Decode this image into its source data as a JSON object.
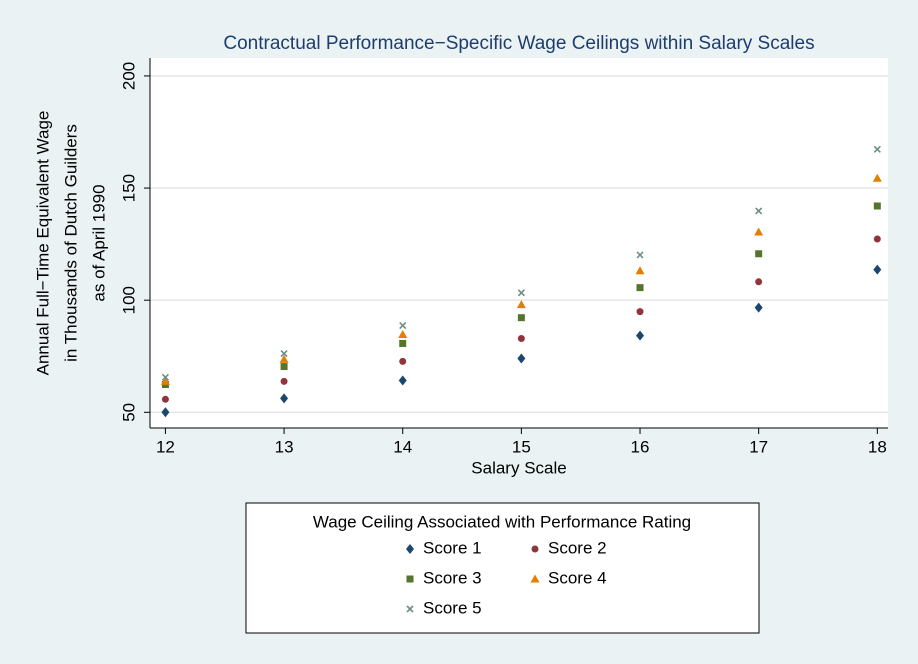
{
  "chart_data": {
    "type": "scatter",
    "title": "Contractual Performance−Specific Wage Ceilings within Salary Scales",
    "xlabel": "Salary Scale",
    "ylabel": [
      "Annual Full−Time Equivalent Wage",
      "in Thousands of Dutch Guilders",
      "as of April 1990"
    ],
    "x": [
      12,
      13,
      14,
      15,
      16,
      17,
      18
    ],
    "series": [
      {
        "name": "Score 1",
        "color": "#1a476f",
        "marker": "diamond",
        "values": [
          50,
          56.2,
          64.2,
          74,
          84.2,
          96.7,
          113.6
        ]
      },
      {
        "name": "Score 2",
        "color": "#90353b",
        "marker": "circle",
        "values": [
          55.8,
          63.8,
          72.7,
          82.9,
          94.9,
          108.2,
          127.3
        ]
      },
      {
        "name": "Score 3",
        "color": "#55752f",
        "marker": "square",
        "values": [
          62.4,
          70.4,
          80.7,
          92.2,
          105.6,
          120.7,
          142
        ]
      },
      {
        "name": "Score 4",
        "color": "#e37e00",
        "marker": "triangle",
        "values": [
          63.8,
          73.6,
          84.7,
          98,
          113.1,
          130.4,
          154.4
        ]
      },
      {
        "name": "Score 5",
        "color": "#6e8e84",
        "marker": "x",
        "values": [
          65.6,
          76.2,
          88.7,
          103.3,
          120.2,
          139.8,
          167.3
        ]
      }
    ],
    "legend_title": "Wage Ceiling Associated with Performance Rating",
    "legend_position": "bottom",
    "xlim": [
      11.87,
      18.09
    ],
    "xticks": [
      12,
      13,
      14,
      15,
      16,
      17,
      18
    ],
    "ylim": [
      43,
      208
    ],
    "yticks": [
      50,
      100,
      150,
      200
    ],
    "grid": true
  }
}
